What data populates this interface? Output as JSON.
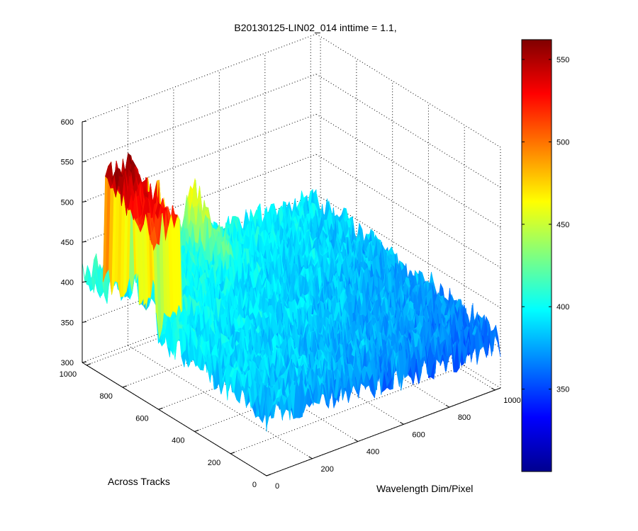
{
  "chart_data": {
    "type": "surface",
    "title": "B20130125-LIN02_014 inttime = 1.1,",
    "xlabel": "Wavelength Dim/Pixel",
    "ylabel": "Across Tracks",
    "zlabel": "",
    "xlim": [
      0,
      1024
    ],
    "ylim": [
      0,
      1024
    ],
    "zlim": [
      300,
      600
    ],
    "x_ticks": [
      "0",
      "200",
      "400",
      "600",
      "800",
      "1000"
    ],
    "y_ticks": [
      "0",
      "200",
      "400",
      "600",
      "800",
      "1000"
    ],
    "z_ticks": [
      "300",
      "350",
      "400",
      "450",
      "500",
      "550",
      "600"
    ],
    "colorbar": {
      "colormap": "jet",
      "range": [
        300,
        562
      ],
      "ticks": [
        "350",
        "400",
        "450",
        "500",
        "550"
      ]
    },
    "surface_summary": {
      "baseline_level": 380,
      "noise_amplitude": 25,
      "peak_region": {
        "x_range": [
          0,
          120
        ],
        "y_range": [
          620,
          900
        ],
        "level": 515
      },
      "secondary_ridge": {
        "x": 470,
        "level": 455
      }
    },
    "grid": true,
    "colors": {
      "background": "#ffffff",
      "axes": "#000000"
    }
  }
}
